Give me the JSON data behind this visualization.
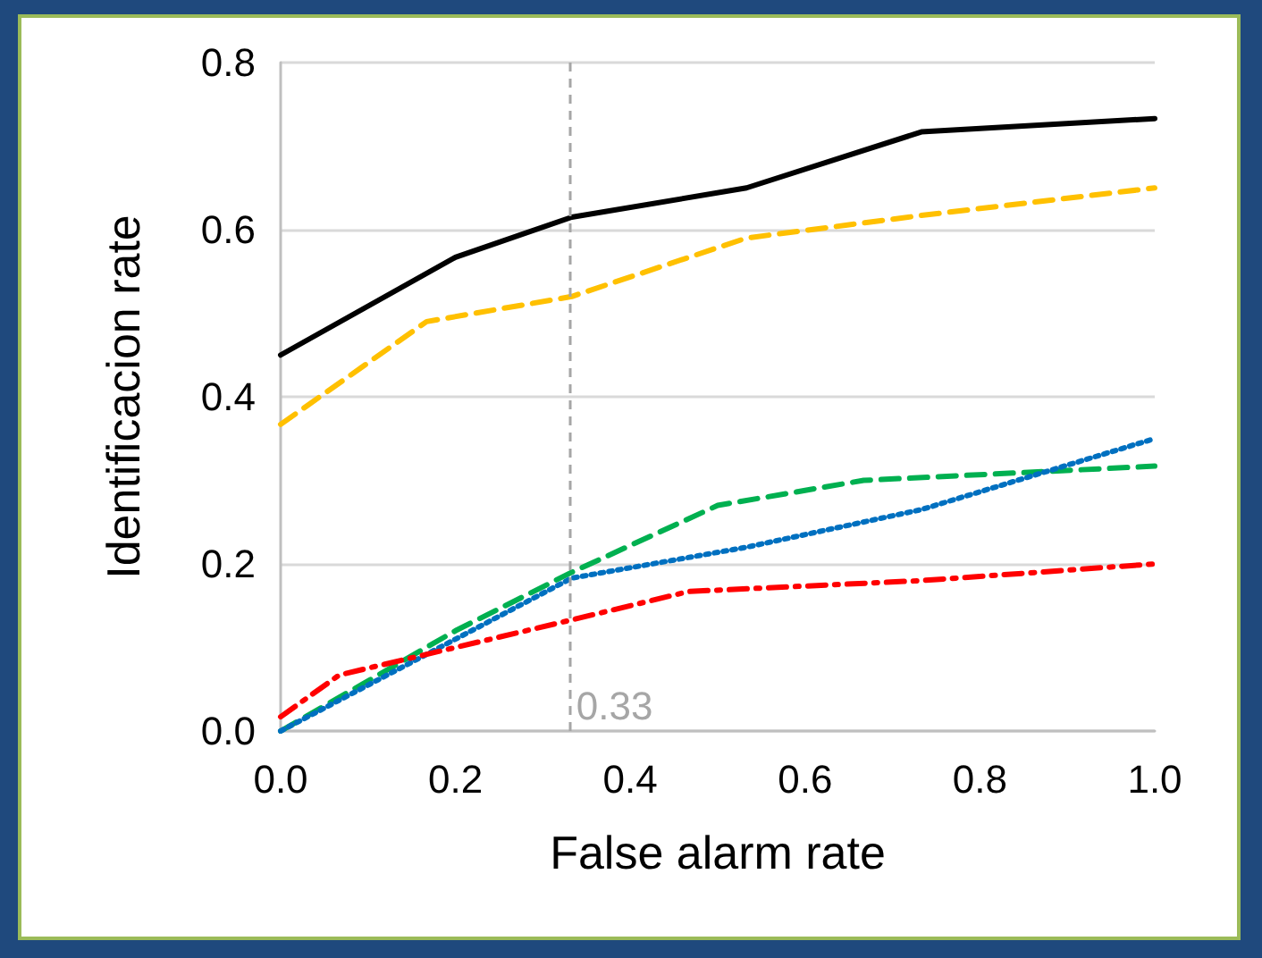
{
  "chart_data": {
    "type": "line",
    "xlabel": "False alarm rate",
    "ylabel": "Identificacion rate",
    "xlim": [
      0,
      1
    ],
    "xticks": [
      {
        "value": 0,
        "label": "0.0"
      },
      0.2,
      0.4,
      0.6,
      0.8,
      {
        "value": 1,
        "label": "1.0"
      }
    ],
    "ylim": [
      0,
      0.8
    ],
    "yticks": [
      {
        "value": 0,
        "label": "0.0"
      },
      0.2,
      0.4,
      0.6,
      0.8
    ],
    "grid": "y",
    "marker": "none",
    "series": [
      {
        "color": "#000000",
        "line_style": "solid",
        "x": [
          0,
          0.2,
          0.333,
          0.533,
          0.733,
          1
        ],
        "values": [
          0.45,
          0.567,
          0.615,
          0.65,
          0.717,
          0.733
        ]
      },
      {
        "color": "#ffc000",
        "line_style": "dashed",
        "x": [
          0,
          0.167,
          0.333,
          0.533,
          0.733,
          1
        ],
        "values": [
          0.367,
          0.49,
          0.52,
          0.59,
          0.617,
          0.65
        ]
      },
      {
        "color": "#00b050",
        "line_style": "dashed",
        "x": [
          0,
          0.2,
          0.333,
          0.5,
          0.667,
          1
        ],
        "values": [
          0,
          0.12,
          0.19,
          0.27,
          0.3,
          0.317
        ]
      },
      {
        "color": "#0070c0",
        "line_style": "dotted",
        "x": [
          0,
          0.333,
          0.533,
          0.733,
          1
        ],
        "values": [
          0,
          0.183,
          0.22,
          0.265,
          0.35
        ]
      },
      {
        "color": "#ff0000",
        "line_style": "dashdot",
        "x": [
          0,
          0.067,
          0.2,
          0.333,
          0.467,
          0.733,
          1
        ],
        "values": [
          0.017,
          0.067,
          0.1,
          0.133,
          0.167,
          0.18,
          0.2
        ]
      }
    ],
    "ref_lines": [
      {
        "axis": "x",
        "value": 0.33,
        "label": "0.33",
        "color": "#a6a6a6",
        "line_style": "dashed"
      }
    ]
  }
}
